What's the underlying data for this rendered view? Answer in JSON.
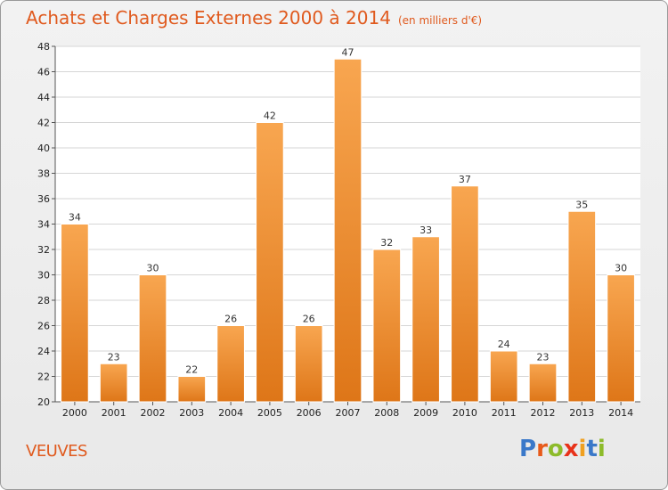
{
  "header": {
    "title": "Achats et Charges Externes 2000 à 2014",
    "unit": "(en milliers d'€)"
  },
  "footer": {
    "place": "VEUVES",
    "logo_text": "Proxiti",
    "logo_colors": [
      "#3a78c9",
      "#e85a1a",
      "#8dbb2a",
      "#e8321a",
      "#f0a020",
      "#3a78c9",
      "#8dbb2a"
    ]
  },
  "colors": {
    "accent": "#e05a1e",
    "bar_light": "#f8a650",
    "bar_dark": "#de7618"
  },
  "chart_data": {
    "type": "bar",
    "categories": [
      "2000",
      "2001",
      "2002",
      "2003",
      "2004",
      "2005",
      "2006",
      "2007",
      "2008",
      "2009",
      "2010",
      "2011",
      "2012",
      "2013",
      "2014"
    ],
    "values": [
      34,
      23,
      30,
      22,
      26,
      42,
      26,
      47,
      32,
      33,
      37,
      24,
      23,
      35,
      30
    ],
    "title": "Achats et Charges Externes 2000 à 2014",
    "xlabel": "",
    "ylabel": "",
    "ylim": [
      20,
      48
    ],
    "yticks": [
      20,
      22,
      24,
      26,
      28,
      30,
      32,
      34,
      36,
      38,
      40,
      42,
      44,
      46,
      48
    ],
    "grid": true,
    "data_labels": true
  }
}
